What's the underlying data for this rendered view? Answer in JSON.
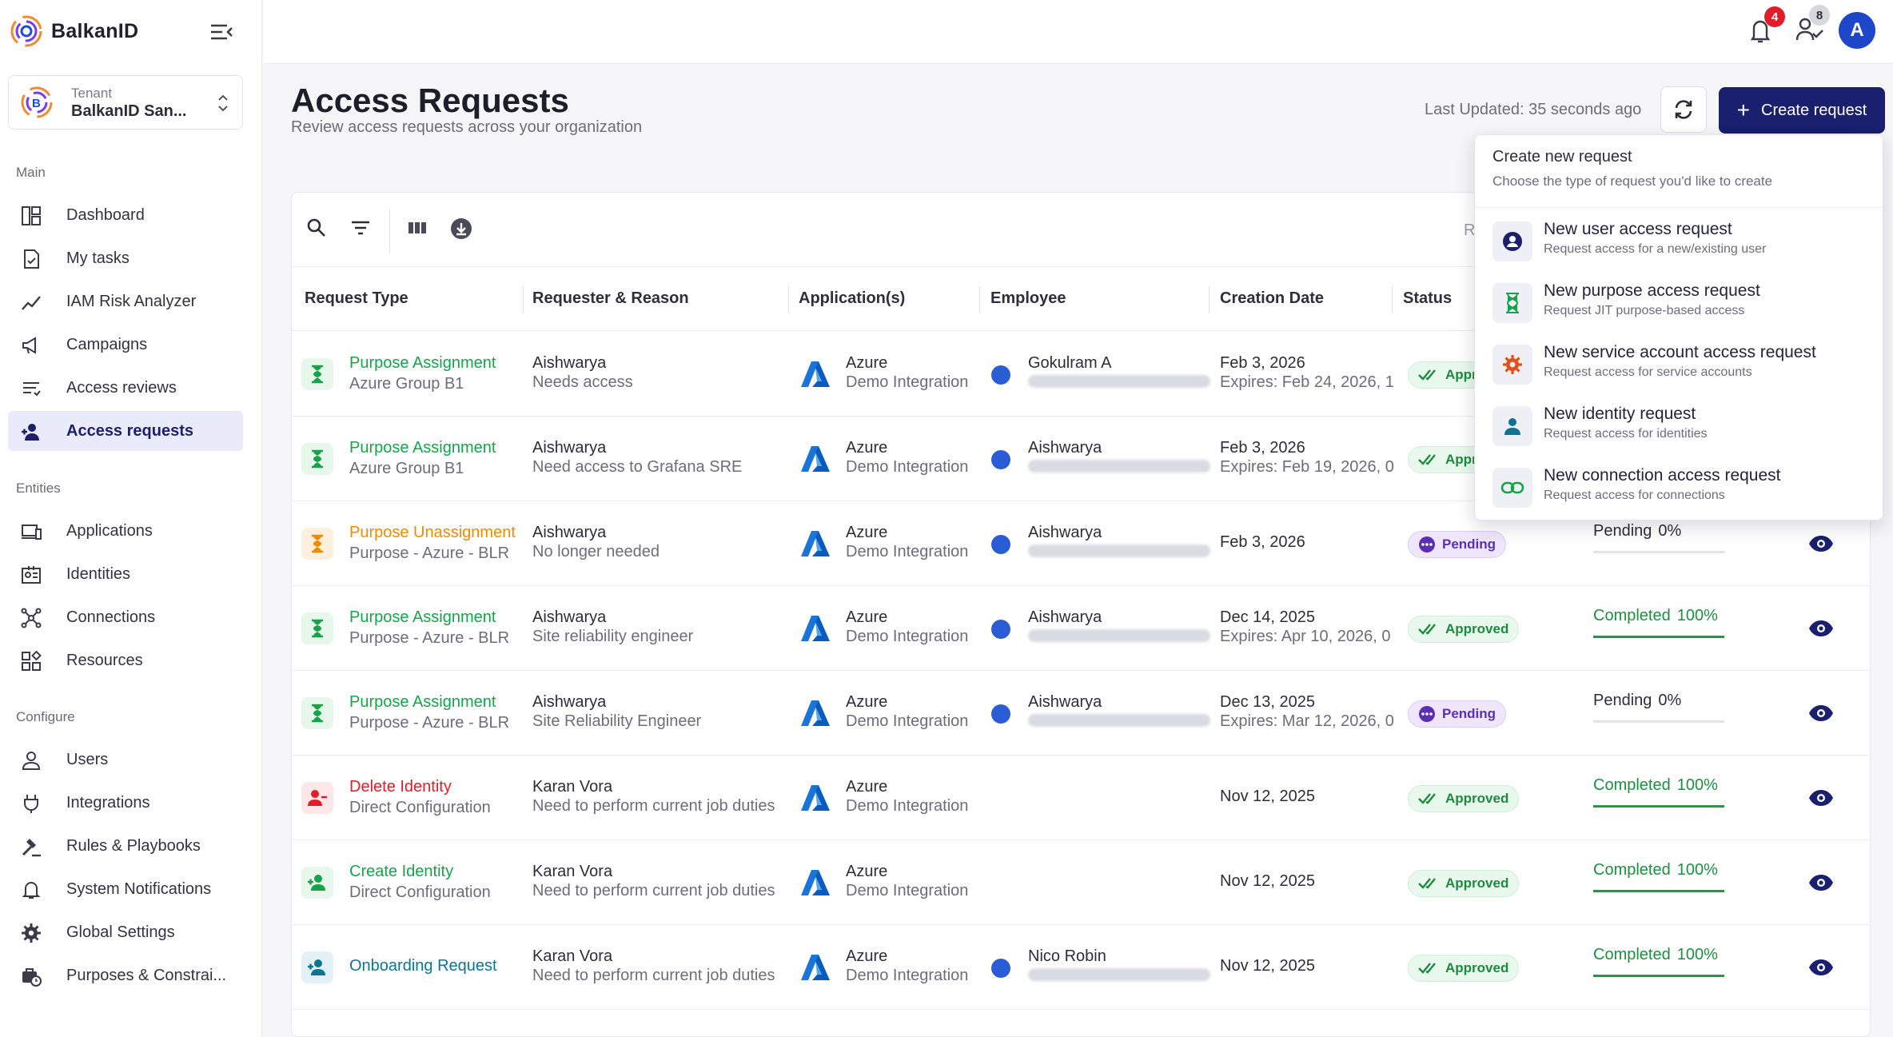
{
  "app": {
    "name": "BalkanID"
  },
  "tenant": {
    "label": "Tenant",
    "name": "BalkanID San..."
  },
  "sidebar": {
    "sections": {
      "main": "Main",
      "entities": "Entities",
      "configure": "Configure"
    },
    "items": [
      {
        "label": "Dashboard",
        "icon": "dashboard-icon"
      },
      {
        "label": "My tasks",
        "icon": "task-check-icon"
      },
      {
        "label": "IAM Risk Analyzer",
        "icon": "trend-line-icon"
      },
      {
        "label": "Campaigns",
        "icon": "megaphone-icon"
      },
      {
        "label": "Access reviews",
        "icon": "review-list-icon"
      },
      {
        "label": "Access requests",
        "icon": "user-plus-icon"
      },
      {
        "label": "Applications",
        "icon": "devices-icon"
      },
      {
        "label": "Identities",
        "icon": "id-card-icon"
      },
      {
        "label": "Connections",
        "icon": "network-icon"
      },
      {
        "label": "Resources",
        "icon": "resources-icon"
      },
      {
        "label": "Users",
        "icon": "user-icon"
      },
      {
        "label": "Integrations",
        "icon": "plug-icon"
      },
      {
        "label": "Rules & Playbooks",
        "icon": "gavel-icon"
      },
      {
        "label": "System Notifications",
        "icon": "bell-icon"
      },
      {
        "label": "Global Settings",
        "icon": "gear-icon"
      },
      {
        "label": "Purposes & Constrai...",
        "icon": "briefcase-clock-icon"
      }
    ]
  },
  "topbar": {
    "notifications": "4",
    "approvals": "8",
    "avatar": "A"
  },
  "page": {
    "title": "Access Requests",
    "subtitle": "Review access requests across your organization",
    "last_updated": "Last Updated: 35 seconds ago",
    "create_label": "Create request"
  },
  "table": {
    "r_label": "R",
    "columns": [
      "Request Type",
      "Requester & Reason",
      "Application(s)",
      "Employee",
      "Creation Date",
      "Status"
    ],
    "rows": [
      {
        "type": "Purpose Assignment",
        "type_sub": "Azure Group B1",
        "requester": "Aishwarya",
        "reason": "Needs access",
        "app": "Azure",
        "app_sub": "Demo Integration",
        "employee": "Gokulram A",
        "date": "Feb 3, 2026",
        "date_sub": "Expires: Feb 24, 2026, 1",
        "status": "Approved",
        "progress_label": "",
        "progress_pct": ""
      },
      {
        "type": "Purpose Assignment",
        "type_sub": "Azure Group B1",
        "requester": "Aishwarya",
        "reason": "Need access to Grafana SRE",
        "app": "Azure",
        "app_sub": "Demo Integration",
        "employee": "Aishwarya",
        "date": "Feb 3, 2026",
        "date_sub": "Expires: Feb 19, 2026, 0",
        "status": "Approved",
        "progress_label": "",
        "progress_pct": ""
      },
      {
        "type": "Purpose Unassignment",
        "type_sub": "Purpose - Azure - BLR",
        "requester": "Aishwarya",
        "reason": "No longer needed",
        "app": "Azure",
        "app_sub": "Demo Integration",
        "employee": "Aishwarya",
        "date": "Feb 3, 2026",
        "date_sub": "",
        "status": "Pending",
        "progress_label": "Pending",
        "progress_pct": "0%"
      },
      {
        "type": "Purpose Assignment",
        "type_sub": "Purpose - Azure - BLR",
        "requester": "Aishwarya",
        "reason": "Site reliability engineer",
        "app": "Azure",
        "app_sub": "Demo Integration",
        "employee": "Aishwarya",
        "date": "Dec 14, 2025",
        "date_sub": "Expires: Apr 10, 2026, 0",
        "status": "Approved",
        "progress_label": "Completed",
        "progress_pct": "100%"
      },
      {
        "type": "Purpose Assignment",
        "type_sub": "Purpose - Azure - BLR",
        "requester": "Aishwarya",
        "reason": "Site Reliability Engineer",
        "app": "Azure",
        "app_sub": "Demo Integration",
        "employee": "Aishwarya",
        "date": "Dec 13, 2025",
        "date_sub": "Expires: Mar 12, 2026, 0",
        "status": "Pending",
        "progress_label": "Pending",
        "progress_pct": "0%"
      },
      {
        "type": "Delete Identity",
        "type_sub": "Direct Configuration",
        "requester": "Karan Vora",
        "reason": "Need to perform current job duties",
        "app": "Azure",
        "app_sub": "Demo Integration",
        "employee": "",
        "date": "Nov 12, 2025",
        "date_sub": "",
        "status": "Approved",
        "progress_label": "Completed",
        "progress_pct": "100%"
      },
      {
        "type": "Create Identity",
        "type_sub": "Direct Configuration",
        "requester": "Karan Vora",
        "reason": "Need to perform current job duties",
        "app": "Azure",
        "app_sub": "Demo Integration",
        "employee": "",
        "date": "Nov 12, 2025",
        "date_sub": "",
        "status": "Approved",
        "progress_label": "Completed",
        "progress_pct": "100%"
      },
      {
        "type": "Onboarding Request",
        "type_sub": "",
        "requester": "Karan Vora",
        "reason": "Need to perform current job duties",
        "app": "Azure",
        "app_sub": "Demo Integration",
        "employee": "Nico Robin",
        "date": "Nov 12, 2025",
        "date_sub": "",
        "status": "Approved",
        "progress_label": "Completed",
        "progress_pct": "100%"
      }
    ]
  },
  "dropdown": {
    "title": "Create new request",
    "subtitle": "Choose the type of request you'd like to create",
    "options": [
      {
        "title": "New user access request",
        "sub": "Request access for a new/existing user",
        "icon": "user-circle-icon"
      },
      {
        "title": "New purpose access request",
        "sub": "Request JIT purpose-based access",
        "icon": "hourglass-icon"
      },
      {
        "title": "New service account access request",
        "sub": "Request access for service accounts",
        "icon": "gear-icon"
      },
      {
        "title": "New identity request",
        "sub": "Request access for identities",
        "icon": "person-icon"
      },
      {
        "title": "New connection access request",
        "sub": "Request access for connections",
        "icon": "link-icon"
      }
    ]
  },
  "colors": {
    "primary": "#1a1f6e",
    "approved": "#1e8a3f",
    "pending": "#5b2fb1",
    "assign": "#17a34a",
    "unassign": "#f08a00",
    "delete": "#e11d2a",
    "create": "#17a34a",
    "onboard": "#0e7490"
  }
}
